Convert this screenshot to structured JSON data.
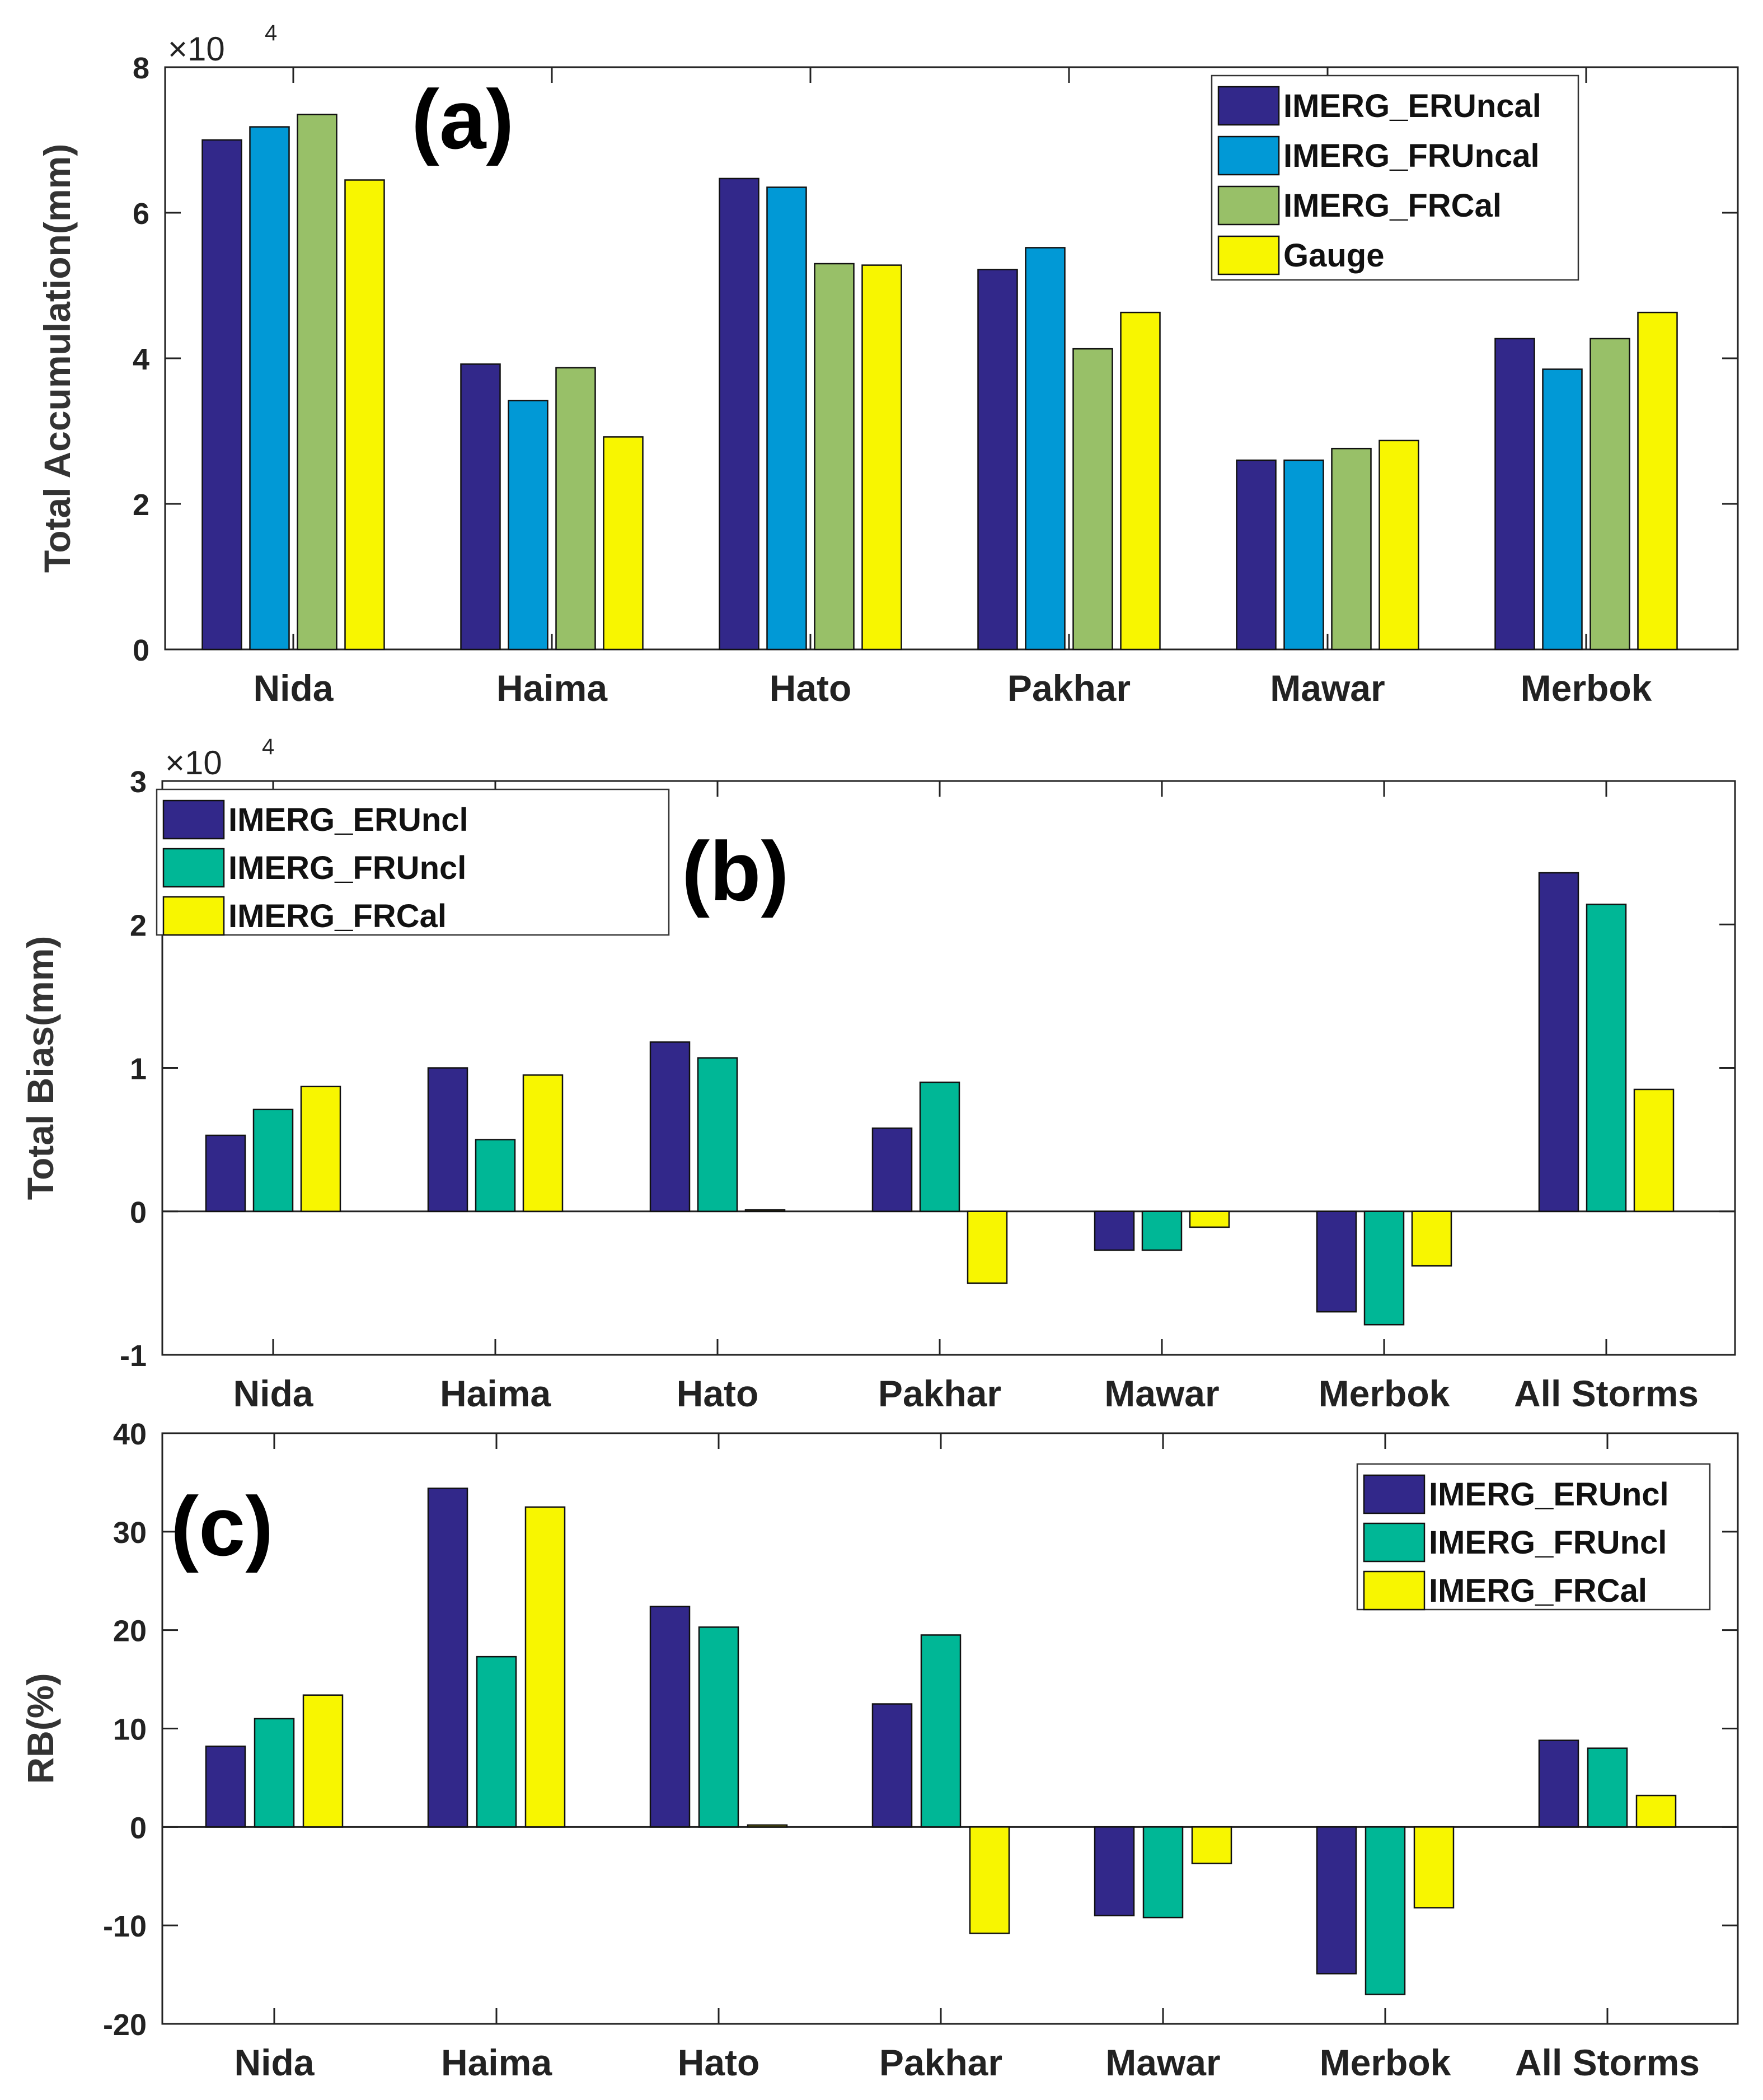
{
  "chart_data": [
    {
      "type": "bar",
      "panel_label": "(a)",
      "ylabel": "Total Accumulation(mm)",
      "y_multiplier": "×10",
      "y_multiplier_exp": "4",
      "ylim": [
        0,
        8
      ],
      "yticks": [
        0,
        2,
        4,
        6,
        8
      ],
      "ytick_labels": [
        "0",
        "2",
        "4",
        "6",
        "8"
      ],
      "categories": [
        "Nida",
        "Haima",
        "Hato",
        "Pakhar",
        "Mawar",
        "Merbok"
      ],
      "series": [
        {
          "name": "IMERG_ERUncal",
          "color": "#32288a",
          "values": [
            7.0,
            3.92,
            6.47,
            5.22,
            2.6,
            4.27
          ]
        },
        {
          "name": "IMERG_FRUncal",
          "color": "#0199d6",
          "values": [
            7.18,
            3.42,
            6.35,
            5.52,
            2.6,
            3.85
          ]
        },
        {
          "name": "IMERG_FRCal",
          "color": "#98c068",
          "values": [
            7.35,
            3.87,
            5.3,
            4.13,
            2.76,
            4.27
          ]
        },
        {
          "name": "Gauge",
          "color": "#f8f600",
          "values": [
            6.45,
            2.92,
            5.28,
            4.63,
            2.87,
            4.63
          ]
        }
      ],
      "legend_position": "top-right"
    },
    {
      "type": "bar",
      "panel_label": "(b)",
      "ylabel": "Total Bias(mm)",
      "y_multiplier": "×10",
      "y_multiplier_exp": "4",
      "ylim": [
        -1,
        3
      ],
      "yticks": [
        -1,
        0,
        1,
        2,
        3
      ],
      "ytick_labels": [
        "-1",
        "0",
        "1",
        "2",
        "3"
      ],
      "categories": [
        "Nida",
        "Haima",
        "Hato",
        "Pakhar",
        "Mawar",
        "Merbok",
        "All Storms"
      ],
      "series": [
        {
          "name": "IMERG_ERUncl",
          "color": "#32288a",
          "values": [
            0.53,
            1.0,
            1.18,
            0.58,
            -0.27,
            -0.7,
            2.36
          ]
        },
        {
          "name": "IMERG_FRUncl",
          "color": "#00b796",
          "values": [
            0.71,
            0.5,
            1.07,
            0.9,
            -0.27,
            -0.79,
            2.14
          ]
        },
        {
          "name": "IMERG_FRCal",
          "color": "#f8f600",
          "values": [
            0.87,
            0.95,
            0.01,
            -0.5,
            -0.11,
            -0.38,
            0.85
          ]
        }
      ],
      "legend_position": "top-left"
    },
    {
      "type": "bar",
      "panel_label": "(c)",
      "ylabel": "RB(%)",
      "ylim": [
        -20,
        40
      ],
      "yticks": [
        -20,
        -10,
        0,
        10,
        20,
        30,
        40
      ],
      "ytick_labels": [
        "-20",
        "-10",
        "0",
        "10",
        "20",
        "30",
        "40"
      ],
      "categories": [
        "Nida",
        "Haima",
        "Hato",
        "Pakhar",
        "Mawar",
        "Merbok",
        "All Storms"
      ],
      "series": [
        {
          "name": "IMERG_ERUncl",
          "color": "#32288a",
          "values": [
            8.2,
            34.4,
            22.4,
            12.5,
            -9.0,
            -14.9,
            8.8
          ]
        },
        {
          "name": "IMERG_FRUncl",
          "color": "#00b796",
          "values": [
            11.0,
            17.3,
            20.3,
            19.5,
            -9.2,
            -17.0,
            8.0
          ]
        },
        {
          "name": "IMERG_FRCal",
          "color": "#f8f600",
          "values": [
            13.4,
            32.5,
            0.2,
            -10.8,
            -3.7,
            -8.2,
            3.2
          ]
        }
      ],
      "legend_position": "top-right"
    }
  ]
}
